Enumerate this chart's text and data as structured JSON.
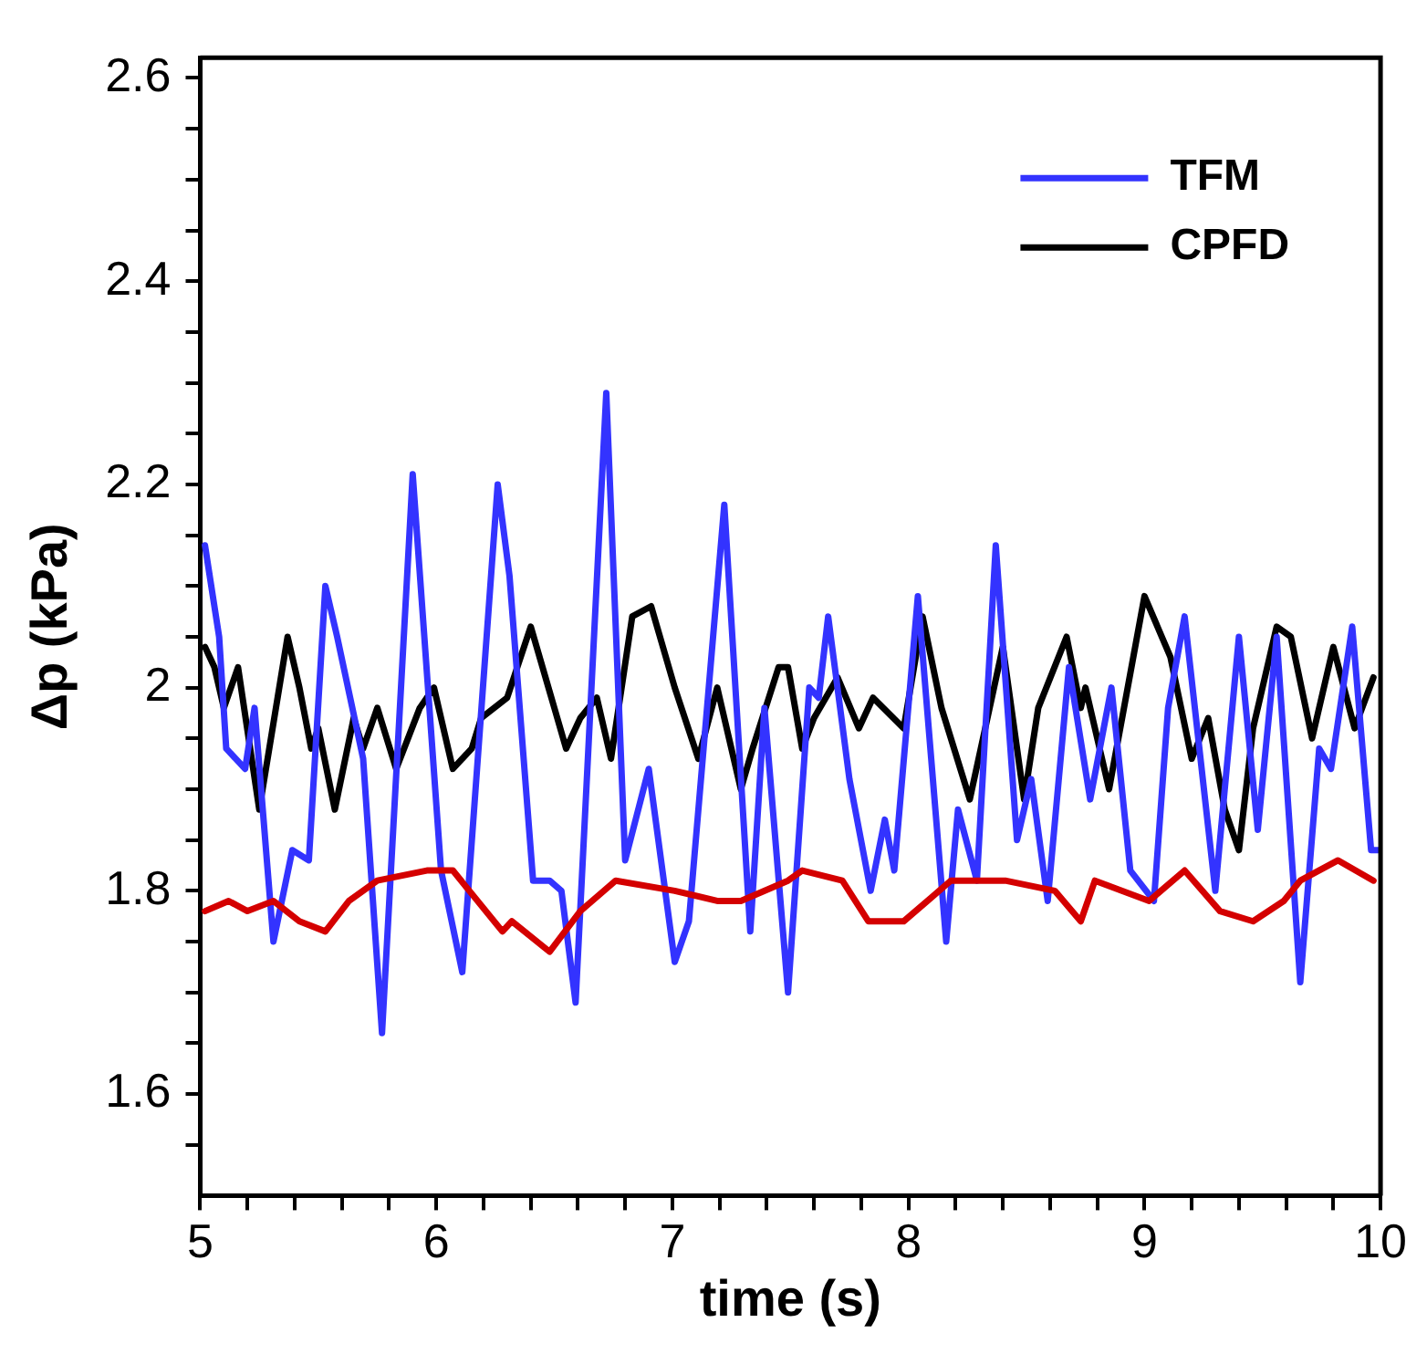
{
  "chart_data": {
    "type": "line",
    "xlabel": "time (s)",
    "ylabel": "Δp (kPa)",
    "xlim": [
      5,
      10
    ],
    "xticks": [
      5,
      {
        "value": 5.2,
        "label": null
      },
      {
        "value": 5.4,
        "label": null
      },
      {
        "value": 5.6,
        "label": null
      },
      {
        "value": 5.8,
        "label": null
      },
      6,
      {
        "value": 6.2,
        "label": null
      },
      {
        "value": 6.4,
        "label": null
      },
      {
        "value": 6.6,
        "label": null
      },
      {
        "value": 6.8,
        "label": null
      },
      7,
      {
        "value": 7.2,
        "label": null
      },
      {
        "value": 7.4,
        "label": null
      },
      {
        "value": 7.6,
        "label": null
      },
      {
        "value": 7.8,
        "label": null
      },
      8,
      {
        "value": 8.2,
        "label": null
      },
      {
        "value": 8.4,
        "label": null
      },
      {
        "value": 8.6,
        "label": null
      },
      {
        "value": 8.8,
        "label": null
      },
      9,
      {
        "value": 9.2,
        "label": null
      },
      {
        "value": 9.4,
        "label": null
      },
      {
        "value": 9.6,
        "label": null
      },
      {
        "value": 9.8,
        "label": null
      },
      10
    ],
    "ylim": [
      1.5,
      2.62
    ],
    "yticks": [
      {
        "value": 1.55,
        "label": null
      },
      1.6,
      {
        "value": 1.65,
        "label": null
      },
      {
        "value": 1.7,
        "label": null
      },
      {
        "value": 1.75,
        "label": null
      },
      1.8,
      {
        "value": 1.85,
        "label": null
      },
      {
        "value": 1.9,
        "label": null
      },
      {
        "value": 1.95,
        "label": null
      },
      2,
      {
        "value": 2.05,
        "label": null
      },
      {
        "value": 2.1,
        "label": null
      },
      {
        "value": 2.15,
        "label": null
      },
      2.2,
      {
        "value": 2.25,
        "label": null
      },
      {
        "value": 2.3,
        "label": null
      },
      {
        "value": 2.35,
        "label": null
      },
      2.4,
      {
        "value": 2.45,
        "label": null
      },
      {
        "value": 2.5,
        "label": null
      },
      {
        "value": 2.55,
        "label": null
      },
      2.6
    ],
    "grid": false,
    "legend": "top right",
    "marker": "none",
    "line_style": "solid",
    "series": [
      {
        "color": "#d40000",
        "x": [
          5.02,
          5.12,
          5.2,
          5.31,
          5.42,
          5.53,
          5.63,
          5.75,
          5.96,
          6.07,
          6.28,
          6.32,
          6.48,
          6.61,
          6.76,
          7.01,
          7.19,
          7.29,
          7.49,
          7.55,
          7.72,
          7.83,
          7.98,
          8.18,
          8.41,
          8.62,
          8.73,
          8.79,
          9.02,
          9.17,
          9.32,
          9.46,
          9.59,
          9.66,
          9.82,
          9.97
        ],
        "values": [
          1.78,
          1.79,
          1.78,
          1.79,
          1.77,
          1.76,
          1.79,
          1.81,
          1.82,
          1.82,
          1.76,
          1.77,
          1.74,
          1.78,
          1.81,
          1.8,
          1.79,
          1.79,
          1.81,
          1.82,
          1.81,
          1.77,
          1.77,
          1.81,
          1.81,
          1.8,
          1.77,
          1.81,
          1.79,
          1.82,
          1.78,
          1.77,
          1.79,
          1.81,
          1.83,
          1.81
        ]
      },
      {
        "name": "TFM",
        "color": "#3333ff",
        "x": [
          5.02,
          5.08,
          5.11,
          5.19,
          5.23,
          5.31,
          5.39,
          5.46,
          5.53,
          5.58,
          5.69,
          5.77,
          5.9,
          6.02,
          6.11,
          6.26,
          6.31,
          6.41,
          6.48,
          6.53,
          6.59,
          6.72,
          6.8,
          6.9,
          7.01,
          7.07,
          7.22,
          7.33,
          7.39,
          7.49,
          7.58,
          7.62,
          7.66,
          7.75,
          7.84,
          7.9,
          7.94,
          8.04,
          8.16,
          8.21,
          8.29,
          8.37,
          8.46,
          8.52,
          8.59,
          8.68,
          8.77,
          8.86,
          8.94,
          9.04,
          9.1,
          9.17,
          9.3,
          9.4,
          9.48,
          9.56,
          9.66,
          9.74,
          9.79,
          9.88,
          9.96,
          10
        ],
        "values": [
          2.14,
          2.05,
          1.94,
          1.92,
          1.98,
          1.75,
          1.84,
          1.83,
          2.1,
          2.05,
          1.93,
          1.66,
          2.21,
          1.82,
          1.72,
          2.2,
          2.11,
          1.81,
          1.81,
          1.8,
          1.69,
          2.29,
          1.83,
          1.92,
          1.73,
          1.77,
          2.18,
          1.76,
          1.98,
          1.7,
          2.0,
          1.99,
          2.07,
          1.91,
          1.8,
          1.87,
          1.82,
          2.09,
          1.75,
          1.88,
          1.81,
          2.14,
          1.85,
          1.91,
          1.79,
          2.02,
          1.89,
          2.0,
          1.82,
          1.79,
          1.98,
          2.07,
          1.8,
          2.05,
          1.86,
          2.05,
          1.71,
          1.94,
          1.92,
          2.06,
          1.84,
          1.84
        ]
      },
      {
        "name": "CPFD",
        "color": "#000000",
        "x": [
          5.02,
          5.06,
          5.1,
          5.16,
          5.25,
          5.37,
          5.42,
          5.47,
          5.5,
          5.57,
          5.65,
          5.69,
          5.75,
          5.83,
          5.93,
          5.99,
          6.07,
          6.15,
          6.19,
          6.3,
          6.4,
          6.5,
          6.55,
          6.61,
          6.68,
          6.74,
          6.83,
          6.91,
          7.01,
          7.11,
          7.19,
          7.29,
          7.34,
          7.45,
          7.49,
          7.55,
          7.6,
          7.7,
          7.79,
          7.85,
          7.98,
          8.06,
          8.14,
          8.26,
          8.4,
          8.49,
          8.55,
          8.67,
          8.73,
          8.75,
          8.85,
          9.0,
          9.11,
          9.2,
          9.27,
          9.34,
          9.4,
          9.46,
          9.56,
          9.62,
          9.71,
          9.8,
          9.89,
          9.97
        ],
        "values": [
          2.04,
          2.02,
          1.98,
          2.02,
          1.88,
          2.05,
          2.0,
          1.94,
          1.96,
          1.88,
          1.97,
          1.94,
          1.98,
          1.92,
          1.98,
          2.0,
          1.92,
          1.94,
          1.97,
          1.99,
          2.06,
          1.98,
          1.94,
          1.97,
          1.99,
          1.93,
          2.07,
          2.08,
          2.0,
          1.93,
          2.0,
          1.9,
          1.94,
          2.02,
          2.02,
          1.94,
          1.97,
          2.01,
          1.96,
          1.99,
          1.96,
          2.07,
          1.98,
          1.89,
          2.04,
          1.89,
          1.98,
          2.05,
          1.98,
          2.0,
          1.9,
          2.09,
          2.03,
          1.93,
          1.97,
          1.88,
          1.84,
          1.96,
          2.06,
          2.05,
          1.95,
          2.04,
          1.96,
          2.01
        ]
      }
    ]
  }
}
